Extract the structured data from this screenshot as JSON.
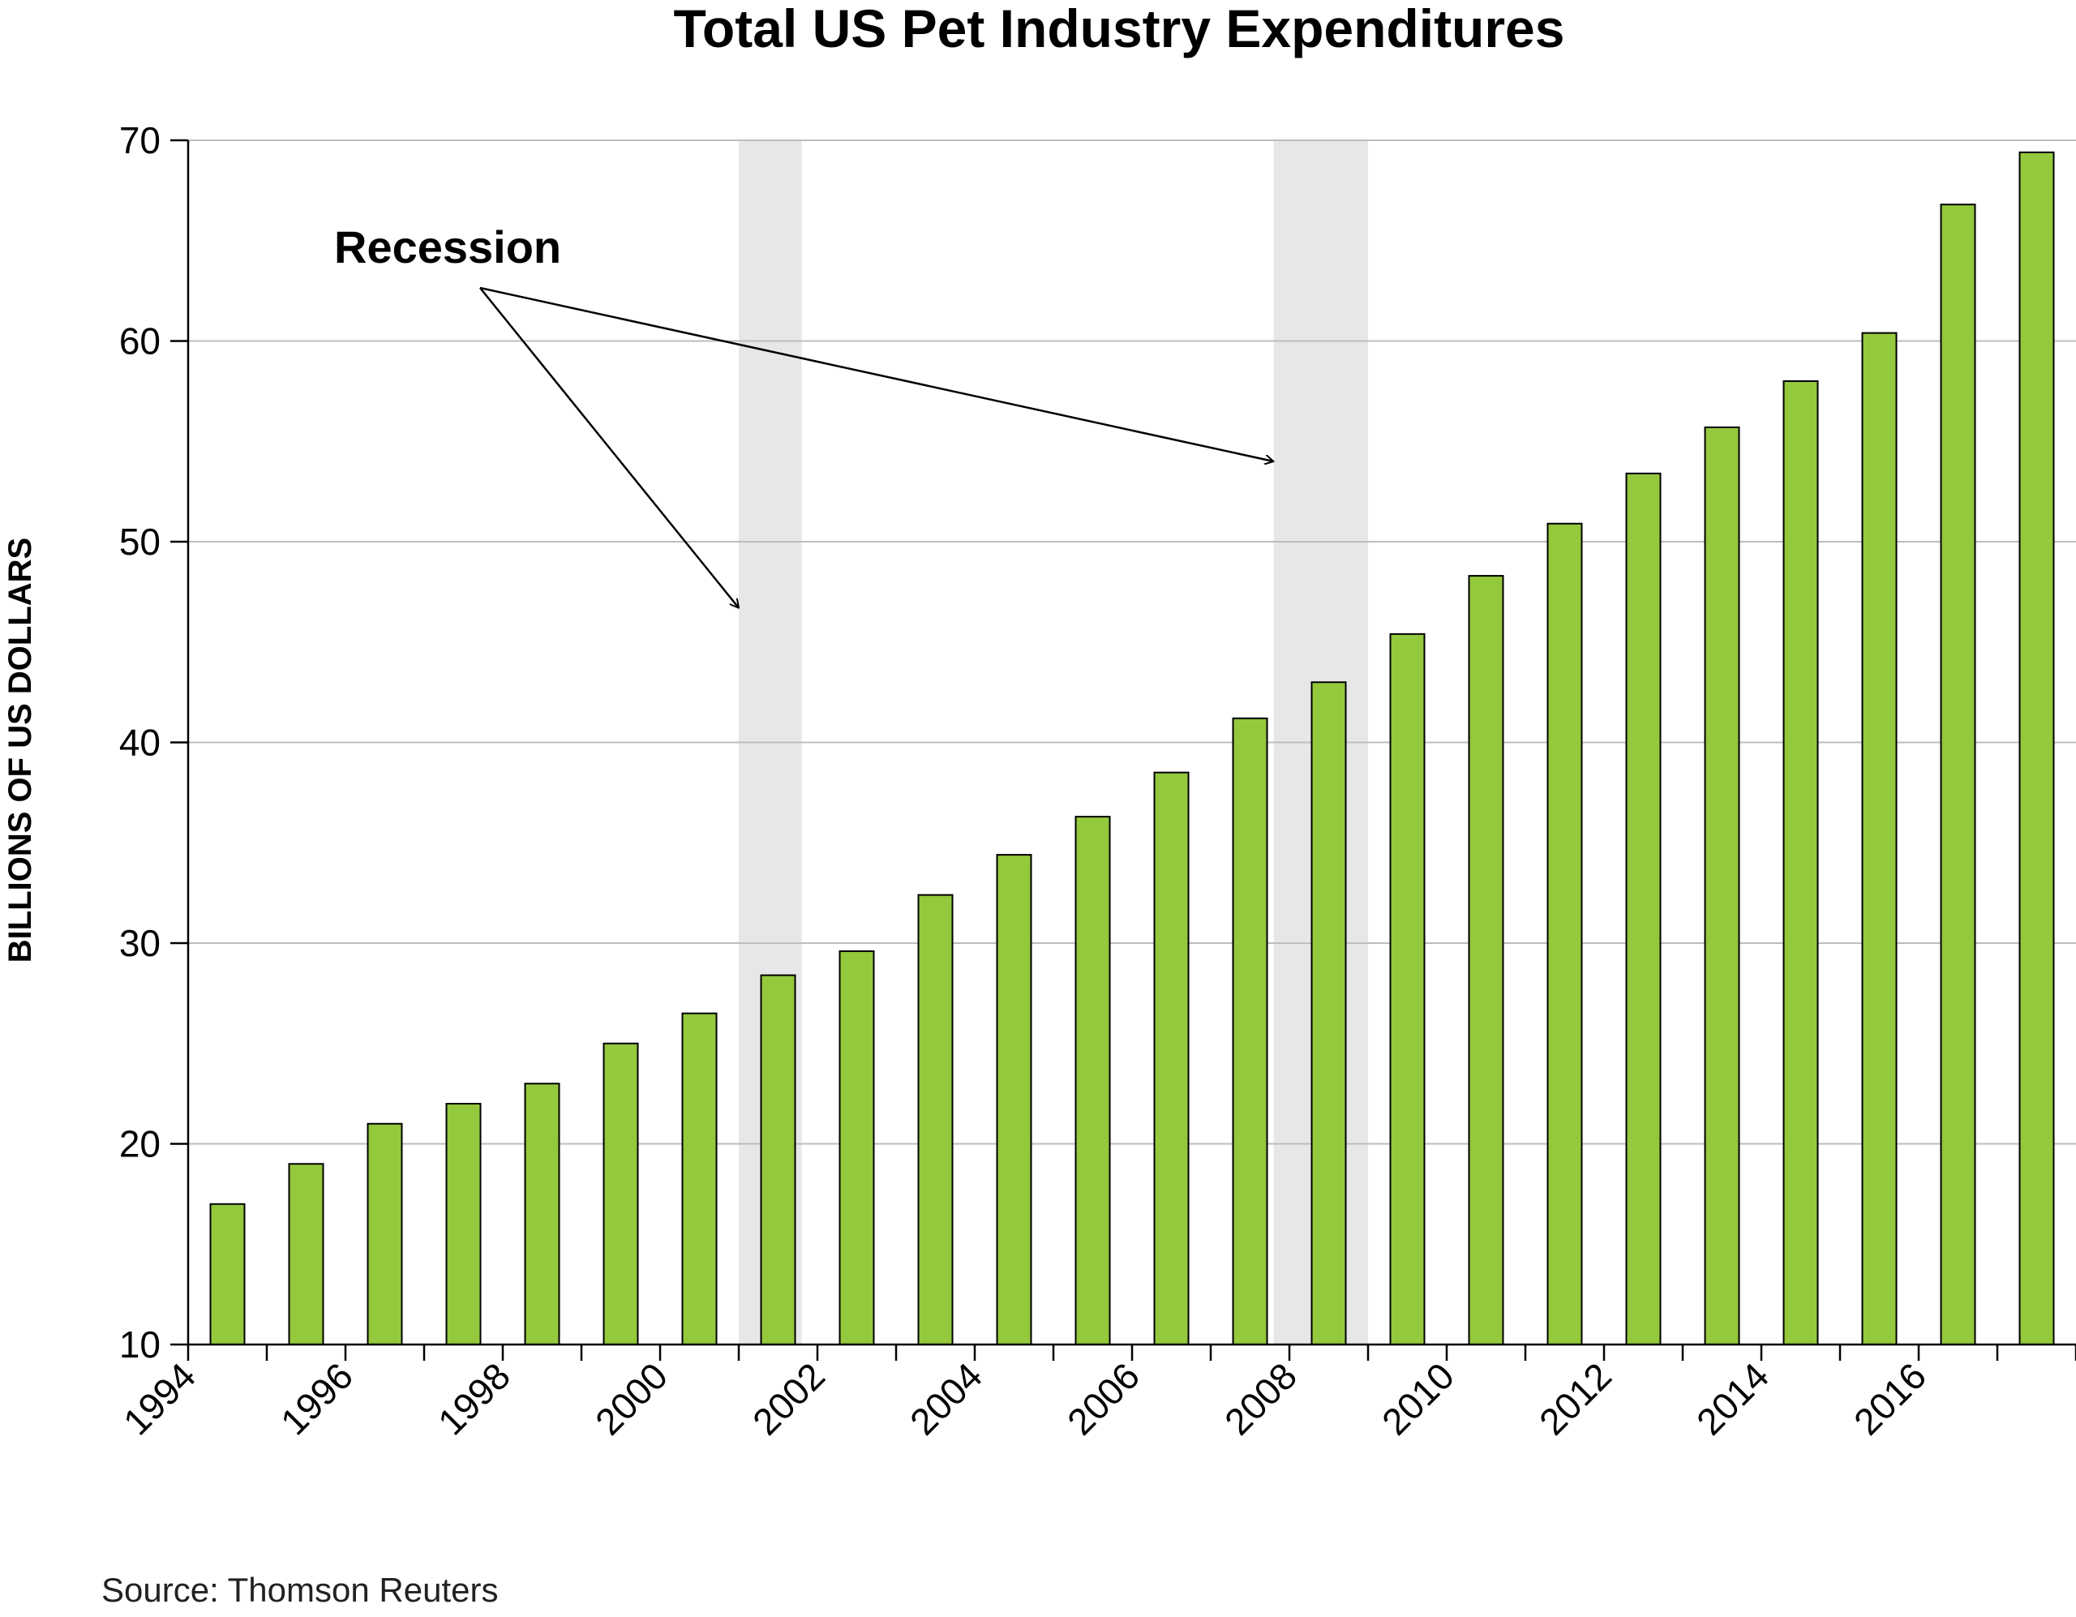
{
  "chart_data": {
    "type": "bar",
    "title": "Total US Pet Industry Expenditures",
    "ylabel": "BILLIONS OF US DOLLARS",
    "xlabel": "",
    "ylim": [
      10,
      70
    ],
    "yticks": [
      10,
      20,
      30,
      40,
      50,
      60,
      70
    ],
    "xtick_labels": [
      "1994",
      "1996",
      "1998",
      "2000",
      "2002",
      "2004",
      "2006",
      "2008",
      "2010",
      "2012",
      "2014",
      "2016"
    ],
    "categories": [
      "1994",
      "1995",
      "1996",
      "1997",
      "1998",
      "1999",
      "2000",
      "2001",
      "2002",
      "2003",
      "2004",
      "2005",
      "2006",
      "2007",
      "2008",
      "2009",
      "2010",
      "2011",
      "2012",
      "2013",
      "2014",
      "2015",
      "2016",
      "2017"
    ],
    "values": [
      17.0,
      19.0,
      21.0,
      22.0,
      23.0,
      25.0,
      26.5,
      28.4,
      29.6,
      32.4,
      34.4,
      36.3,
      38.5,
      41.2,
      43.0,
      45.4,
      48.3,
      50.9,
      53.4,
      55.7,
      58.0,
      60.4,
      66.8,
      69.4
    ],
    "bar_color": "#94c83d",
    "grid": true,
    "recession_bands": [
      {
        "start_year": 2001.0,
        "end_year": 2001.8
      },
      {
        "start_year": 2007.8,
        "end_year": 2009.0
      }
    ],
    "band_color": "#e6e7e8",
    "annotation": "Recession",
    "source": "Source: Thomson Reuters"
  }
}
